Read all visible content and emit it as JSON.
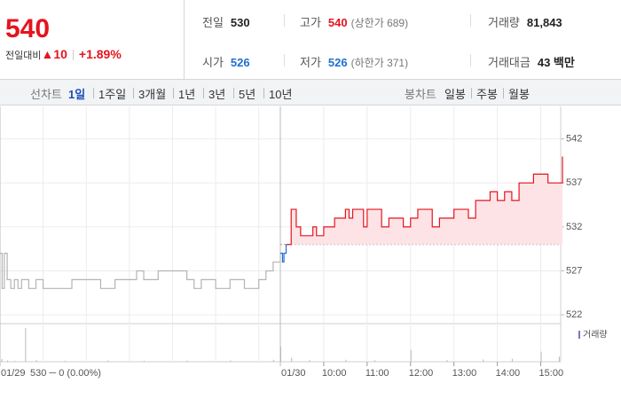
{
  "header": {
    "price": "540",
    "change_label": "전일대비",
    "change": "10",
    "change_pct": "+1.89%",
    "stats": [
      {
        "label": "전일",
        "value": "530",
        "color": "#222222"
      },
      {
        "label": "고가",
        "value": "540",
        "note": "(상한가 689)",
        "color": "#e5141e"
      },
      {
        "label": "거래량",
        "value": "81,843",
        "color": "#222222"
      },
      {
        "label": "시가",
        "value": "526",
        "color": "#1f6fd1"
      },
      {
        "label": "저가",
        "value": "526",
        "note": "(하한가 371)",
        "color": "#1f6fd1"
      },
      {
        "label": "거래대금",
        "value": "43 백만",
        "color": "#222222"
      }
    ]
  },
  "tabs": {
    "line_label": "선차트",
    "line_periods": [
      "1일",
      "1주일",
      "3개월",
      "1년",
      "3년",
      "5년",
      "10년"
    ],
    "selected": 0,
    "candle_label": "봉차트",
    "candle_periods": [
      "일봉",
      "주봉",
      "월봉"
    ]
  },
  "chart_data": {
    "type": "line",
    "ylim": [
      521,
      545.7
    ],
    "yticks": [
      522,
      527,
      532,
      537,
      542
    ],
    "xlim": [
      0,
      390
    ],
    "grid": true,
    "prev_close": 530,
    "fill_color": "#fde3e6",
    "volume_label": "거래량",
    "volume_color": "#b9b9b9",
    "panels": [
      {
        "date": "01/29",
        "summary": "530 ─ 0 (0.00%)",
        "grid_x": [
          0,
          60,
          120,
          180,
          240,
          300,
          360
        ],
        "series": [
          {
            "color": "#b4b4b4",
            "x": [
              0,
              3,
              6,
              10,
              15,
              20,
              25,
              30,
              40,
              50,
              60,
              80,
              100,
              120,
              140,
              160,
              180,
              190,
              200,
              220,
              240,
              260,
              270,
              280,
              300,
              320,
              340,
              360,
              370,
              380,
              390
            ],
            "values": [
              529,
              525,
              529,
              526,
              525,
              526,
              525,
              526,
              525,
              526,
              525,
              525,
              526,
              526,
              525,
              526,
              526,
              527,
              526,
              527,
              527,
              526,
              525,
              526,
              525,
              526,
              525,
              526,
              527,
              528,
              529
            ]
          }
        ],
        "volume_x": [
          2,
          10,
          20,
          35,
          50,
          90,
          150,
          200,
          260,
          320,
          380
        ],
        "volume": [
          800,
          400,
          300,
          10000,
          500,
          300,
          400,
          300,
          350,
          400,
          600
        ]
      },
      {
        "date": "01/30",
        "xticks": [
          {
            "value": 60,
            "label": "10:00"
          },
          {
            "value": 120,
            "label": "11:00"
          },
          {
            "value": 180,
            "label": "12:00"
          },
          {
            "value": 240,
            "label": "13:00"
          },
          {
            "value": 300,
            "label": "14:00"
          },
          {
            "value": 360,
            "label": "15:00"
          }
        ],
        "series": [
          {
            "color": "#1f6fd1",
            "x": [
              0,
              3,
              5,
              8
            ],
            "values": [
              529,
              528,
              529,
              530
            ]
          },
          {
            "color": "#e5141e",
            "fill": true,
            "x": [
              8,
              12,
              15,
              20,
              22,
              25,
              28,
              35,
              40,
              45,
              50,
              60,
              70,
              75,
              85,
              90,
              95,
              100,
              110,
              115,
              120,
              130,
              140,
              150,
              160,
              170,
              180,
              190,
              200,
              210,
              220,
              230,
              240,
              250,
              260,
              270,
              280,
              290,
              300,
              310,
              320,
              330,
              340,
              350,
              360,
              370,
              380,
              390
            ],
            "values": [
              530,
              530,
              534,
              534,
              532,
              532,
              531,
              531,
              531,
              532,
              531,
              532,
              532,
              533,
              533,
              534,
              533,
              534,
              534,
              532,
              534,
              534,
              532,
              533,
              533,
              532,
              533,
              534,
              534,
              532,
              533,
              533,
              534,
              534,
              533,
              535,
              535,
              536,
              535,
              536,
              535,
              537,
              537,
              538,
              538,
              537,
              537,
              540
            ]
          }
        ],
        "volume_x": [
          0,
          15,
          40,
          90,
          130,
          180,
          230,
          280,
          320,
          360,
          385
        ],
        "volume": [
          4500,
          1200,
          500,
          600,
          400,
          3500,
          500,
          700,
          900,
          3000,
          1500
        ]
      }
    ]
  }
}
